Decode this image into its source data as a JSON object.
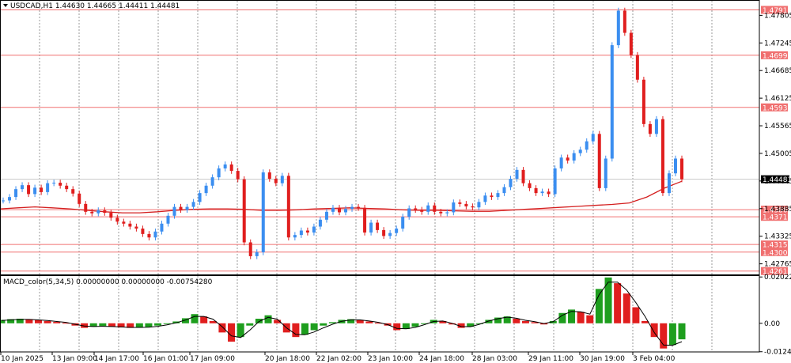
{
  "header": {
    "symbol_line": "USDCAD,H1  1.44630 1.44665 1.44411 1.44481",
    "indicator_line": "MACD_color(5,34,5) 0.00000000 0.00000000 -0.00754280"
  },
  "colors": {
    "bull": "#3b8ef0",
    "bear": "#e01e1e",
    "ma": "#d42020",
    "level": "#f07070",
    "macd_up": "#1e9e1e",
    "macd_down": "#e01e1e",
    "price_tag_bg": "#000000"
  },
  "price_axis": {
    "ticks": [
      "1.47805",
      "1.47245",
      "1.46685",
      "1.46125",
      "1.45565",
      "1.45005",
      "1.44445",
      "1.43885",
      "1.43325",
      "1.42765"
    ],
    "current": "1.44481",
    "level_tags": [
      "1.47916",
      "1.46995",
      "1.45938",
      "1.43864",
      "1.43718",
      "1.43158",
      "1.43003",
      "1.42619"
    ]
  },
  "macd_axis": {
    "ticks": [
      "0.0202257",
      "0.00",
      "-0.0124114"
    ]
  },
  "time_axis": {
    "labels": [
      "10 Jan 2025",
      "13 Jan 09:00",
      "14 Jan 17:00",
      "16 Jan 01:00",
      "17 Jan 09:00",
      "20 Jan 18:00",
      "22 Jan 02:00",
      "23 Jan 10:00",
      "24 Jan 18:00",
      "28 Jan 03:00",
      "29 Jan 11:00",
      "30 Jan 19:00",
      "3 Feb 04:00"
    ]
  },
  "chart_data": {
    "type": "candlestick",
    "symbol": "USDCAD",
    "timeframe": "H1",
    "ohlc_last": {
      "open": 1.4463,
      "high": 1.44665,
      "low": 1.44411,
      "close": 1.44481
    },
    "ylim": [
      1.4255,
      1.481
    ],
    "horizontal_levels": [
      1.47916,
      1.46995,
      1.45938,
      1.43864,
      1.43718,
      1.43158,
      1.43003,
      1.42619
    ],
    "close_path": [
      1.4405,
      1.4412,
      1.4428,
      1.4436,
      1.4418,
      1.4431,
      1.4422,
      1.444,
      1.4441,
      1.4435,
      1.4428,
      1.4419,
      1.4398,
      1.4382,
      1.4379,
      1.4385,
      1.438,
      1.437,
      1.4362,
      1.4358,
      1.4352,
      1.4348,
      1.4337,
      1.433,
      1.4342,
      1.4358,
      1.4374,
      1.4392,
      1.4386,
      1.4392,
      1.4402,
      1.442,
      1.4435,
      1.4452,
      1.447,
      1.4478,
      1.4465,
      1.4448,
      1.432,
      1.4292,
      1.43,
      1.4462,
      1.4449,
      1.444,
      1.4455,
      1.433,
      1.4335,
      1.4344,
      1.434,
      1.4352,
      1.4366,
      1.4382,
      1.439,
      1.4381,
      1.4388,
      1.4392,
      1.439,
      1.434,
      1.436,
      1.4345,
      1.4333,
      1.4339,
      1.4348,
      1.4372,
      1.4389,
      1.4386,
      1.4382,
      1.4395,
      1.4382,
      1.4379,
      1.4381,
      1.4401,
      1.4398,
      1.4393,
      1.4391,
      1.4402,
      1.4415,
      1.4412,
      1.442,
      1.4432,
      1.4449,
      1.4467,
      1.444,
      1.443,
      1.442,
      1.4423,
      1.4418,
      1.447,
      1.4492,
      1.4486,
      1.4501,
      1.4508,
      1.4525,
      1.454,
      1.443,
      1.449,
      1.472,
      1.479,
      1.4745,
      1.47,
      1.465,
      1.456,
      1.454,
      1.457,
      1.442,
      1.446,
      1.449,
      1.4448
    ],
    "ma_path": [
      1.4388,
      1.439,
      1.4392,
      1.439,
      1.4388,
      1.4385,
      1.4382,
      1.438,
      1.438,
      1.4382,
      1.4385,
      1.4387,
      1.4388,
      1.4388,
      1.4387,
      1.4385,
      1.4385,
      1.4386,
      1.4388,
      1.4389,
      1.439,
      1.4389,
      1.4388,
      1.4386,
      1.4385,
      1.4385,
      1.4384,
      1.4383,
      1.4383,
      1.4385,
      1.4387,
      1.4389,
      1.4391,
      1.4393,
      1.4395,
      1.4397,
      1.44,
      1.4412,
      1.443,
      1.4444
    ],
    "macd": {
      "name": "MACD_color(5,34,5)",
      "ylim": [
        -0.0125,
        0.0203
      ],
      "histogram": [
        0.0015,
        0.0018,
        0.002,
        0.0018,
        0.0014,
        0.001,
        0.0006,
        0.0002,
        -0.001,
        -0.002,
        -0.0015,
        -0.0012,
        -0.0015,
        -0.0018,
        -0.002,
        -0.0019,
        -0.0016,
        -0.001,
        -0.0003,
        0.0008,
        0.0022,
        0.004,
        0.003,
        0.001,
        -0.004,
        -0.008,
        -0.006,
        -0.001,
        0.002,
        0.0035,
        0.0015,
        -0.004,
        -0.006,
        -0.005,
        -0.003,
        -0.001,
        0.0005,
        0.0015,
        0.0018,
        0.0015,
        0.0008,
        0.0002,
        -0.001,
        -0.003,
        -0.0025,
        -0.0015,
        0.0,
        0.0015,
        0.001,
        -0.0005,
        -0.002,
        -0.0015,
        0.0,
        0.0015,
        0.0025,
        0.003,
        0.002,
        0.001,
        0.0005,
        -0.0005,
        0.001,
        0.0045,
        0.006,
        0.005,
        0.0035,
        0.015,
        0.02,
        0.0175,
        0.013,
        0.007,
        0.001,
        -0.006,
        -0.011,
        -0.0095,
        -0.007
      ],
      "signal": [
        0.0012,
        0.0015,
        0.0017,
        0.0017,
        0.0015,
        0.0012,
        0.0008,
        0.0004,
        -0.0004,
        -0.0012,
        -0.0014,
        -0.0013,
        -0.0014,
        -0.0016,
        -0.0018,
        -0.0018,
        -0.0017,
        -0.0013,
        -0.0007,
        0.0002,
        0.0014,
        0.003,
        0.003,
        0.0018,
        -0.0015,
        -0.0055,
        -0.0062,
        -0.003,
        0.0008,
        0.0026,
        0.0018,
        -0.002,
        -0.0048,
        -0.005,
        -0.0038,
        -0.002,
        -0.0004,
        0.0009,
        0.0015,
        0.0015,
        0.001,
        0.0004,
        -0.0006,
        -0.0022,
        -0.0024,
        -0.0018,
        -0.0006,
        0.0008,
        0.001,
        0.0,
        -0.0014,
        -0.0015,
        -0.0004,
        0.001,
        0.002,
        0.0027,
        0.0022,
        0.0013,
        0.0007,
        -0.0001,
        0.0007,
        0.0035,
        0.0052,
        0.005,
        0.004,
        0.0125,
        0.018,
        0.018,
        0.0145,
        0.009,
        0.003,
        -0.004,
        -0.0095,
        -0.0096,
        -0.008
      ]
    }
  }
}
